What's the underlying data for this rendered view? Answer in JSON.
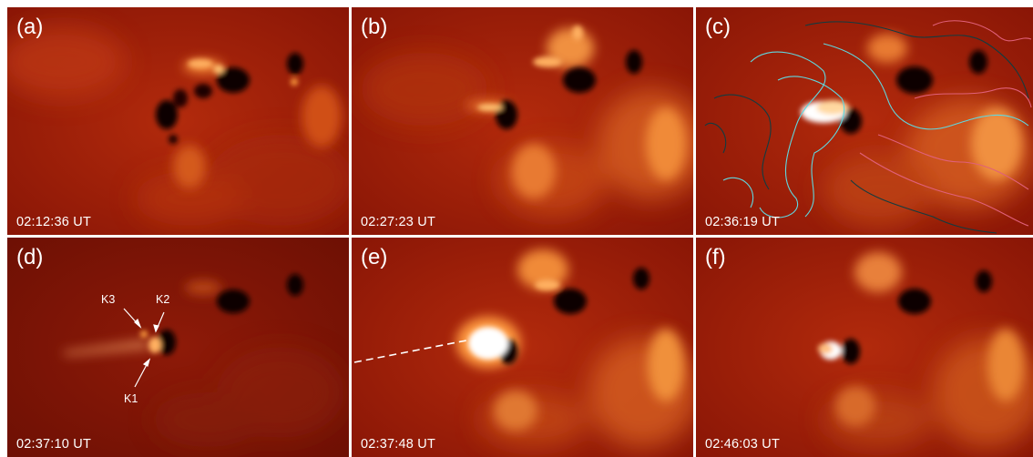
{
  "figure": {
    "colors": {
      "background": "#8e1606",
      "bright": "#ffb45a",
      "hot": "#ffffff",
      "dark": "#0a0000",
      "contour_pos": "#5fd8e0",
      "contour_neg": "#e0607a",
      "contour_dark": "#123c40"
    },
    "panels": [
      {
        "label": "(a)",
        "time": "02:12:36 UT"
      },
      {
        "label": "(b)",
        "time": "02:27:23 UT"
      },
      {
        "label": "(c)",
        "time": "02:36:19 UT"
      },
      {
        "label": "(d)",
        "time": "02:37:10 UT"
      },
      {
        "label": "(e)",
        "time": "02:37:48 UT"
      },
      {
        "label": "(f)",
        "time": "02:46:03 UT"
      }
    ],
    "annotations": {
      "k1": "K1",
      "k2": "K2",
      "k3": "K3"
    }
  }
}
